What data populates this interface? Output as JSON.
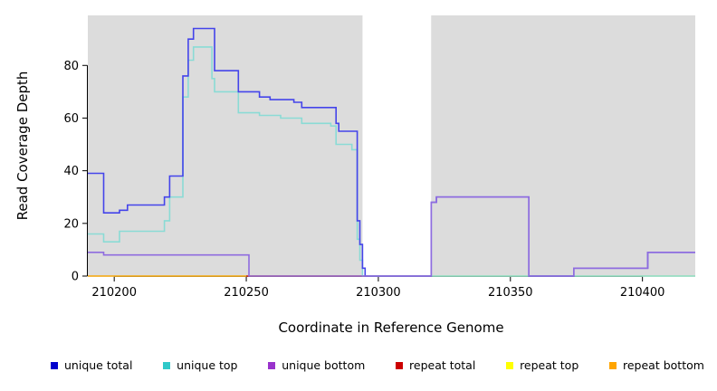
{
  "chart_data": {
    "type": "line",
    "title": "",
    "xlabel": "Coordinate in Reference Genome",
    "ylabel": "Read Coverage Depth",
    "xlim": [
      210190,
      210420
    ],
    "ylim": [
      0,
      99
    ],
    "xticks": [
      210200,
      210250,
      210300,
      210350,
      210400
    ],
    "yticks": [
      0,
      20,
      40,
      60,
      80
    ],
    "grid": "off",
    "step_interpolation": true,
    "background": {
      "plot_bg": "#DCDCDC",
      "gap_band": {
        "from": 210294,
        "to": 210320,
        "color": "#FFFFFF"
      }
    },
    "series": [
      {
        "name": "repeat top",
        "color": "#E8E84D",
        "step_points": [
          [
            210190,
            0
          ],
          [
            210420,
            0
          ]
        ]
      },
      {
        "name": "repeat total",
        "color": "#CC2222",
        "step_points": [
          [
            210250,
            0
          ],
          [
            210296,
            0
          ]
        ]
      },
      {
        "name": "repeat bottom",
        "color": "#F5A623",
        "step_points": [
          [
            210190,
            0
          ],
          [
            210250,
            0
          ]
        ]
      },
      {
        "name": "unique top",
        "color": "#8ADBD5",
        "step_points": [
          [
            210190,
            16
          ],
          [
            210196,
            13
          ],
          [
            210202,
            17
          ],
          [
            210217,
            17
          ],
          [
            210219,
            21
          ],
          [
            210221,
            30
          ],
          [
            210225,
            30
          ],
          [
            210226,
            68
          ],
          [
            210228,
            82
          ],
          [
            210230,
            87
          ],
          [
            210236,
            87
          ],
          [
            210237,
            75
          ],
          [
            210238,
            70
          ],
          [
            210247,
            62
          ],
          [
            210255,
            61
          ],
          [
            210263,
            60
          ],
          [
            210271,
            58
          ],
          [
            210282,
            57
          ],
          [
            210284,
            50
          ],
          [
            210290,
            48
          ],
          [
            210292,
            14
          ],
          [
            210293,
            6
          ],
          [
            210294,
            0
          ],
          [
            210420,
            0
          ]
        ]
      },
      {
        "name": "unique total",
        "color": "#4444EA",
        "step_points": [
          [
            210190,
            39
          ],
          [
            210196,
            24
          ],
          [
            210202,
            25
          ],
          [
            210205,
            27
          ],
          [
            210217,
            27
          ],
          [
            210219,
            30
          ],
          [
            210221,
            38
          ],
          [
            210225,
            38
          ],
          [
            210226,
            76
          ],
          [
            210228,
            90
          ],
          [
            210230,
            94
          ],
          [
            210238,
            78
          ],
          [
            210247,
            70
          ],
          [
            210255,
            68
          ],
          [
            210259,
            67
          ],
          [
            210264,
            67
          ],
          [
            210268,
            66
          ],
          [
            210271,
            64
          ],
          [
            210282,
            64
          ],
          [
            210284,
            58
          ],
          [
            210285,
            55
          ],
          [
            210291,
            55
          ],
          [
            210292,
            21
          ],
          [
            210293,
            12
          ],
          [
            210294,
            3
          ],
          [
            210295,
            0
          ],
          [
            210320,
            28
          ],
          [
            210322,
            30
          ],
          [
            210357,
            0
          ],
          [
            210374,
            3
          ],
          [
            210401,
            3
          ],
          [
            210402,
            9
          ],
          [
            210420,
            9
          ]
        ]
      },
      {
        "name": "unique bottom",
        "color": "#8F6CDF",
        "step_points": [
          [
            210190,
            9
          ],
          [
            210196,
            8
          ],
          [
            210250,
            8
          ],
          [
            210251,
            0
          ],
          [
            210320,
            0
          ],
          [
            210320,
            28
          ],
          [
            210322,
            30
          ],
          [
            210357,
            0
          ],
          [
            210374,
            3
          ],
          [
            210401,
            3
          ],
          [
            210402,
            9
          ],
          [
            210420,
            9
          ]
        ]
      }
    ]
  },
  "legend": {
    "items": [
      {
        "label": "unique total",
        "color": "#0000CD"
      },
      {
        "label": "unique top",
        "color": "#30C9C9"
      },
      {
        "label": "unique bottom",
        "color": "#9933CC"
      },
      {
        "label": "repeat total",
        "color": "#CC0000"
      },
      {
        "label": "repeat top",
        "color": "#FFFF00"
      },
      {
        "label": "repeat bottom",
        "color": "#FFA500"
      }
    ]
  }
}
